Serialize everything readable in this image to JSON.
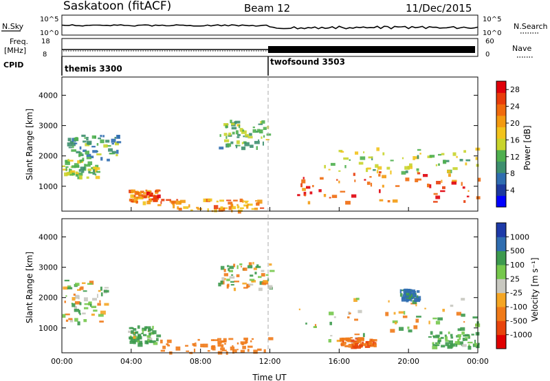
{
  "header": {
    "station": "Saskatoon (fitACF)",
    "beam": "Beam 12",
    "date": "11/Dec/2015"
  },
  "panels": {
    "nsky": {
      "left_label": "N.Sky",
      "left_ticks": [
        "10^5",
        "10^0"
      ],
      "right_ticks": [
        "10^5",
        "10^0"
      ],
      "right_label": "N.Search"
    },
    "freq": {
      "left_label_1": "Freq.",
      "left_label_2": "[MHz]",
      "left_ticks": [
        "18",
        "8"
      ],
      "right_ticks": [
        "60",
        "0"
      ],
      "right_label": "Nave"
    },
    "cpid": {
      "label": "CPID",
      "entries": [
        "themis 3300",
        "twofsound 3503"
      ]
    }
  },
  "colors": {
    "power_scale": [
      "#0000ff",
      "#1d3a9e",
      "#2f6db0",
      "#3d8f6e",
      "#4fb04f",
      "#c8d42c",
      "#f2c31c",
      "#f39a10",
      "#f06a0c",
      "#e83c0a",
      "#e0000a"
    ],
    "velocity_scale": [
      "#1d3aa8",
      "#2f6db0",
      "#3d9a4e",
      "#76c84c",
      "#c8c8c0",
      "#f5a623",
      "#f07a18",
      "#e8440c",
      "#e00000"
    ]
  },
  "chart_data": [
    {
      "type": "heatmap",
      "title": "Power",
      "xlabel": "Time UT",
      "ylabel": "Slant Range [km]",
      "x_ticks": [
        "00:00",
        "04:00",
        "08:00",
        "12:00",
        "16:00",
        "20:00",
        "00:00"
      ],
      "x_range_hours": [
        0,
        24
      ],
      "y_ticks": [
        1000,
        2000,
        3000,
        4000
      ],
      "ylim": [
        180,
        4600
      ],
      "colorbar_label": "Power [dB]",
      "colorbar_ticks": [
        4,
        8,
        12,
        16,
        20,
        24,
        28
      ],
      "colorbar_range": [
        0,
        30
      ],
      "regions": [
        {
          "t0": 0.0,
          "t1": 2.0,
          "r0": 1300,
          "r1": 1900,
          "value": 14
        },
        {
          "t0": 0.3,
          "t1": 3.2,
          "r0": 1900,
          "r1": 2700,
          "value": 10
        },
        {
          "t0": 3.8,
          "t1": 5.5,
          "r0": 500,
          "r1": 900,
          "value": 24
        },
        {
          "t0": 5.5,
          "t1": 11.5,
          "r0": 200,
          "r1": 600,
          "value": 22
        },
        {
          "t0": 9.0,
          "t1": 12.0,
          "r0": 2300,
          "r1": 3200,
          "value": 12
        },
        {
          "t0": 13.5,
          "t1": 24.0,
          "r0": 500,
          "r1": 1500,
          "value": 26
        },
        {
          "t0": 15.0,
          "t1": 24.0,
          "r0": 1500,
          "r1": 2300,
          "value": 14
        }
      ]
    },
    {
      "type": "heatmap",
      "title": "Velocity",
      "xlabel": "Time UT",
      "ylabel": "Slant Range [km]",
      "x_ticks": [
        "00:00",
        "04:00",
        "08:00",
        "12:00",
        "16:00",
        "20:00",
        "00:00"
      ],
      "x_range_hours": [
        0,
        24
      ],
      "y_ticks": [
        1000,
        2000,
        3000,
        4000
      ],
      "ylim": [
        180,
        4600
      ],
      "colorbar_label": "Velocity [m s⁻¹]",
      "colorbar_ticks": [
        "1000",
        "500",
        "100",
        "25",
        "-25",
        "-100",
        "-500",
        "-1000"
      ],
      "regions": [
        {
          "t0": 0.0,
          "t1": 2.5,
          "r0": 1200,
          "r1": 2600,
          "value": 0
        },
        {
          "t0": 3.8,
          "t1": 5.5,
          "r0": 500,
          "r1": 1100,
          "value": 150
        },
        {
          "t0": 5.5,
          "t1": 12.0,
          "r0": 200,
          "r1": 700,
          "value": -300
        },
        {
          "t0": 9.0,
          "t1": 12.0,
          "r0": 2300,
          "r1": 3200,
          "value": 0
        },
        {
          "t0": 13.5,
          "t1": 24.0,
          "r0": 600,
          "r1": 2000,
          "value": 0
        },
        {
          "t0": 16.0,
          "t1": 18.0,
          "r0": 400,
          "r1": 700,
          "value": -400
        },
        {
          "t0": 19.5,
          "t1": 20.5,
          "r0": 1900,
          "r1": 2300,
          "value": 600
        },
        {
          "t0": 21.0,
          "t1": 24.0,
          "r0": 400,
          "r1": 900,
          "value": 200
        }
      ]
    }
  ]
}
